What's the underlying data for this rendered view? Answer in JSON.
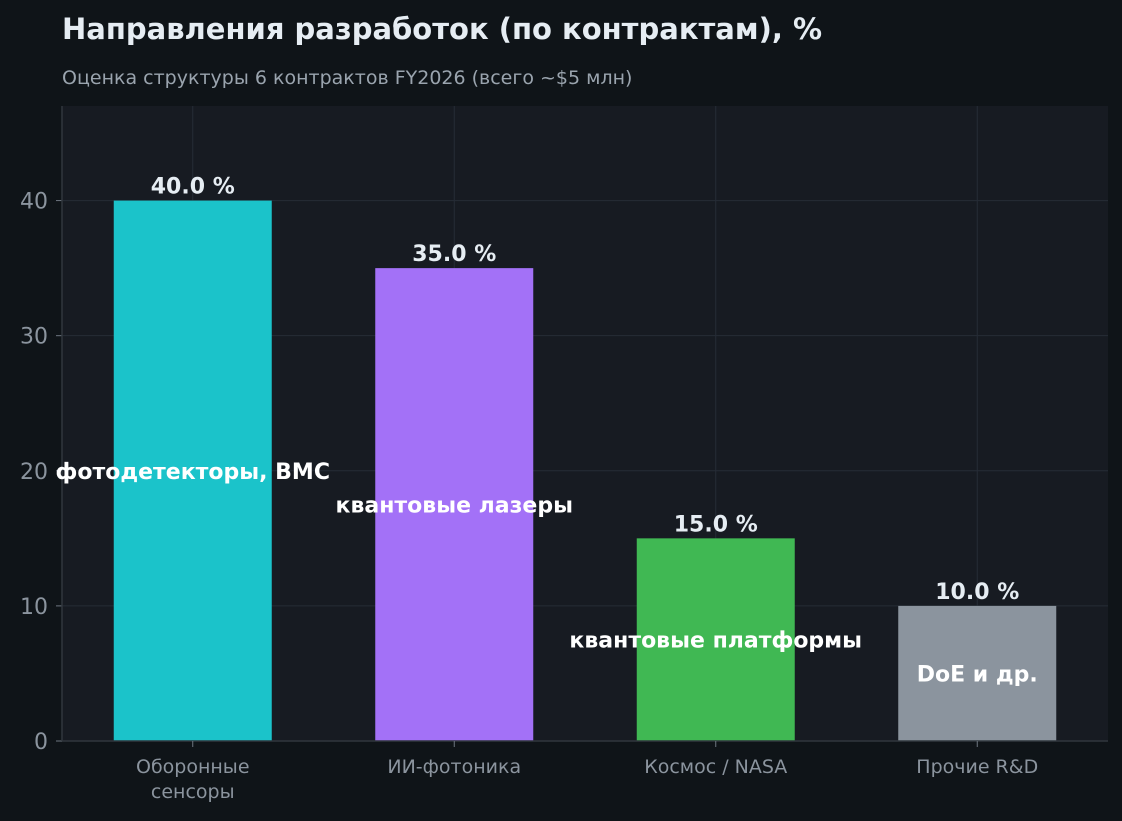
{
  "chart_data": {
    "type": "bar",
    "title": "Направления разработок (по контрактам), %",
    "subtitle": "Оценка структуры 6 контрактов FY2026 (всего ~$5 млн)",
    "xlabel": "",
    "ylabel": "",
    "ylim": [
      0,
      47
    ],
    "yticks": [
      0,
      10,
      20,
      30,
      40
    ],
    "grid": true,
    "categories": [
      [
        "Оборонные",
        "сенсоры"
      ],
      [
        "ИИ-фотоника"
      ],
      [
        "Космос / NASA"
      ],
      [
        "Прочие R&D"
      ]
    ],
    "values": [
      40.0,
      35.0,
      15.0,
      10.0
    ],
    "value_labels": [
      "40.0 %",
      "35.0 %",
      "15.0 %",
      "10.0 %"
    ],
    "inner_labels": [
      "фотодетекторы, BMC",
      "квантовые лазеры",
      "квантовые платформы",
      "DoE и др."
    ],
    "colors": [
      "#1bc3ca",
      "#a371f7",
      "#40b853",
      "#8b949e"
    ]
  }
}
